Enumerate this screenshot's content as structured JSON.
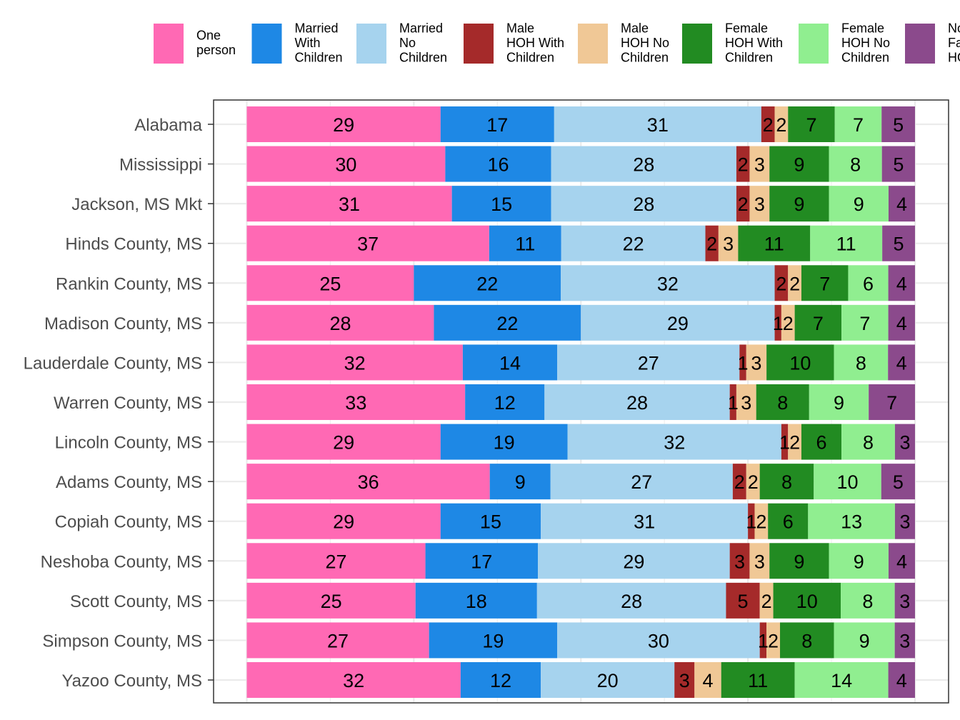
{
  "chart_data": {
    "type": "bar",
    "orientation": "horizontal",
    "stacked": true,
    "normalized": true,
    "title": "",
    "xlabel": "",
    "ylabel": "",
    "xlim": [
      0,
      100
    ],
    "grid": true,
    "legend_position": "top",
    "categories": [
      "Alabama",
      "Mississippi",
      "Jackson, MS Mkt",
      "Hinds County, MS",
      "Rankin County, MS",
      "Madison County, MS",
      "Lauderdale County, MS",
      "Warren County, MS",
      "Lincoln County, MS",
      "Adams County, MS",
      "Copiah County, MS",
      "Neshoba County, MS",
      "Scott County, MS",
      "Simpson County, MS",
      "Yazoo County, MS"
    ],
    "series": [
      {
        "name": "One person",
        "legend_lines": [
          "One",
          "person"
        ],
        "color": "#FF69B4",
        "values": [
          29,
          30,
          31,
          37,
          25,
          28,
          32,
          33,
          29,
          36,
          29,
          27,
          25,
          27,
          32
        ]
      },
      {
        "name": "Married With Children",
        "legend_lines": [
          "Married",
          "With",
          "Children"
        ],
        "color": "#1E88E5",
        "values": [
          17,
          16,
          15,
          11,
          22,
          22,
          14,
          12,
          19,
          9,
          15,
          17,
          18,
          19,
          12
        ]
      },
      {
        "name": "Married No Children",
        "legend_lines": [
          "Married",
          "No",
          "Children"
        ],
        "color": "#A6D3EE",
        "values": [
          31,
          28,
          28,
          22,
          32,
          29,
          27,
          28,
          32,
          27,
          31,
          29,
          28,
          30,
          20
        ]
      },
      {
        "name": "Male HOH With Children",
        "legend_lines": [
          "Male",
          "HOH With",
          "Children"
        ],
        "color": "#A52A2A",
        "values": [
          2,
          2,
          2,
          2,
          2,
          1,
          1,
          1,
          1,
          2,
          1,
          3,
          5,
          1,
          3
        ]
      },
      {
        "name": "Male HOH No Children",
        "legend_lines": [
          "Male",
          "HOH No",
          "Children"
        ],
        "color": "#F0C896",
        "values": [
          2,
          3,
          3,
          3,
          2,
          2,
          3,
          3,
          2,
          2,
          2,
          3,
          2,
          2,
          4
        ]
      },
      {
        "name": "Female HOH With Children",
        "legend_lines": [
          "Female",
          "HOH With",
          "Children"
        ],
        "color": "#228B22",
        "values": [
          7,
          9,
          9,
          11,
          7,
          7,
          10,
          8,
          6,
          8,
          6,
          9,
          10,
          8,
          11
        ]
      },
      {
        "name": "Female HOH No Children",
        "legend_lines": [
          "Female",
          "HOH No",
          "Children"
        ],
        "color": "#90EE90",
        "values": [
          7,
          8,
          9,
          11,
          6,
          7,
          8,
          9,
          8,
          10,
          13,
          9,
          8,
          9,
          14
        ]
      },
      {
        "name": "Non Family HOH",
        "legend_lines": [
          "Non",
          "Family",
          "HOH"
        ],
        "color": "#8B4A8C",
        "values": [
          5,
          5,
          4,
          5,
          4,
          4,
          4,
          7,
          3,
          5,
          3,
          4,
          3,
          3,
          4
        ]
      }
    ]
  }
}
